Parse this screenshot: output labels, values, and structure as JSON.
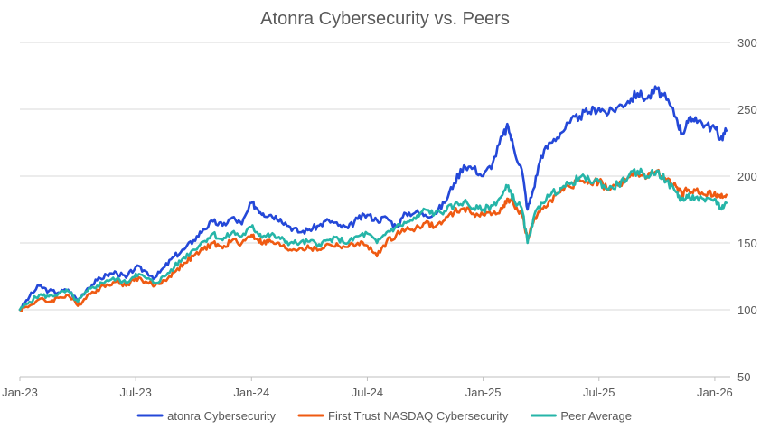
{
  "chart_data": {
    "type": "line",
    "title": "Atonra Cybersecurity vs. Peers",
    "xlabel": "",
    "ylabel": "",
    "ylim": [
      50,
      300
    ],
    "yticks": [
      50,
      100,
      150,
      200,
      250,
      300
    ],
    "grid": true,
    "legend_position": "bottom",
    "x_tick_labels": [
      "Jan-23",
      "Jul-23",
      "Jan-24",
      "Jul-24",
      "Jan-25",
      "Jul-25",
      "Jan-26"
    ],
    "x_tick_months": [
      0,
      6,
      12,
      18,
      24,
      30,
      36
    ],
    "x_range_months": [
      0,
      36.8
    ],
    "series": [
      {
        "name": "atonra Cybersecurity",
        "color": "#2448d8",
        "x": [
          0,
          0.5,
          1,
          1.5,
          2,
          2.5,
          3,
          3.5,
          4,
          4.5,
          5,
          5.5,
          6,
          6.5,
          7,
          7.5,
          8,
          8.5,
          9,
          9.5,
          10,
          10.5,
          11,
          11.5,
          12,
          12.3,
          12.6,
          13,
          13.5,
          14,
          14.5,
          15,
          15.5,
          16,
          16.5,
          17,
          17.5,
          18,
          18.5,
          19,
          19.5,
          20,
          20.5,
          21,
          21.5,
          22,
          22.5,
          23,
          23.5,
          24,
          24.5,
          25,
          25.3,
          25.6,
          26,
          26.3,
          26.6,
          27,
          27.5,
          28,
          28.5,
          29,
          29.5,
          30,
          30.5,
          31,
          31.5,
          32,
          32.5,
          33,
          33.5,
          34,
          34.3,
          34.6,
          35,
          35.5,
          36,
          36.3,
          36.6
        ],
        "values": [
          100,
          110,
          118,
          114,
          113,
          115,
          107,
          116,
          122,
          126,
          128,
          124,
          132,
          129,
          124,
          132,
          140,
          145,
          152,
          160,
          166,
          163,
          169,
          164,
          180,
          176,
          172,
          171,
          168,
          162,
          158,
          160,
          163,
          167,
          163,
          161,
          168,
          171,
          167,
          169,
          162,
          172,
          173,
          171,
          172,
          180,
          195,
          208,
          206,
          200,
          210,
          230,
          237,
          220,
          205,
          175,
          190,
          215,
          225,
          232,
          240,
          245,
          248,
          251,
          247,
          252,
          256,
          262,
          258,
          265,
          257,
          244,
          232,
          240,
          244,
          238,
          236,
          228,
          234
        ]
      },
      {
        "name": "First Trust  NASDAQ Cybersecurity",
        "color": "#ef5a12",
        "x": [
          0,
          0.5,
          1,
          1.5,
          2,
          2.5,
          3,
          3.5,
          4,
          4.5,
          5,
          5.5,
          6,
          6.5,
          7,
          7.5,
          8,
          8.5,
          9,
          9.5,
          10,
          10.5,
          11,
          11.5,
          12,
          12.3,
          12.6,
          13,
          13.5,
          14,
          14.5,
          15,
          15.5,
          16,
          16.5,
          17,
          17.5,
          18,
          18.5,
          19,
          19.5,
          20,
          20.5,
          21,
          21.5,
          22,
          22.5,
          23,
          23.5,
          24,
          24.5,
          25,
          25.3,
          25.6,
          26,
          26.3,
          26.6,
          27,
          27.5,
          28,
          28.5,
          29,
          29.5,
          30,
          30.5,
          31,
          31.5,
          32,
          32.5,
          33,
          33.5,
          34,
          34.3,
          34.6,
          35,
          35.5,
          36,
          36.3,
          36.6
        ],
        "values": [
          100,
          103,
          108,
          106,
          109,
          111,
          103,
          111,
          115,
          119,
          121,
          118,
          124,
          121,
          118,
          122,
          128,
          135,
          140,
          145,
          150,
          146,
          152,
          150,
          156,
          153,
          150,
          151,
          148,
          145,
          146,
          146,
          145,
          149,
          148,
          147,
          150,
          148,
          140,
          151,
          156,
          160,
          161,
          165,
          162,
          167,
          173,
          176,
          172,
          171,
          172,
          176,
          183,
          178,
          172,
          152,
          165,
          176,
          182,
          188,
          192,
          197,
          196,
          196,
          190,
          193,
          199,
          202,
          199,
          204,
          197,
          192,
          186,
          190,
          189,
          186,
          188,
          184,
          186
        ]
      },
      {
        "name": "Peer Average",
        "color": "#26b5a8",
        "x": [
          0,
          0.5,
          1,
          1.5,
          2,
          2.5,
          3,
          3.5,
          4,
          4.5,
          5,
          5.5,
          6,
          6.5,
          7,
          7.5,
          8,
          8.5,
          9,
          9.5,
          10,
          10.5,
          11,
          11.5,
          12,
          12.3,
          12.6,
          13,
          13.5,
          14,
          14.5,
          15,
          15.5,
          16,
          16.5,
          17,
          17.5,
          18,
          18.5,
          19,
          19.5,
          20,
          20.5,
          21,
          21.5,
          22,
          22.5,
          23,
          23.5,
          24,
          24.5,
          25,
          25.3,
          25.6,
          26,
          26.3,
          26.6,
          27,
          27.5,
          28,
          28.5,
          29,
          29.5,
          30,
          30.5,
          31,
          31.5,
          32,
          32.5,
          33,
          33.5,
          34,
          34.3,
          34.6,
          35,
          35.5,
          36,
          36.3,
          36.6
        ],
        "values": [
          100,
          106,
          111,
          110,
          112,
          114,
          106,
          114,
          118,
          122,
          123,
          120,
          127,
          124,
          120,
          125,
          132,
          139,
          145,
          151,
          157,
          152,
          158,
          155,
          162,
          158,
          155,
          156,
          153,
          150,
          150,
          151,
          149,
          152,
          153,
          150,
          155,
          157,
          150,
          158,
          162,
          165,
          168,
          175,
          172,
          174,
          178,
          181,
          176,
          175,
          178,
          186,
          193,
          182,
          176,
          150,
          168,
          180,
          186,
          191,
          194,
          199,
          197,
          196,
          190,
          194,
          199,
          204,
          200,
          204,
          196,
          188,
          182,
          184,
          184,
          181,
          183,
          176,
          180
        ]
      }
    ]
  }
}
